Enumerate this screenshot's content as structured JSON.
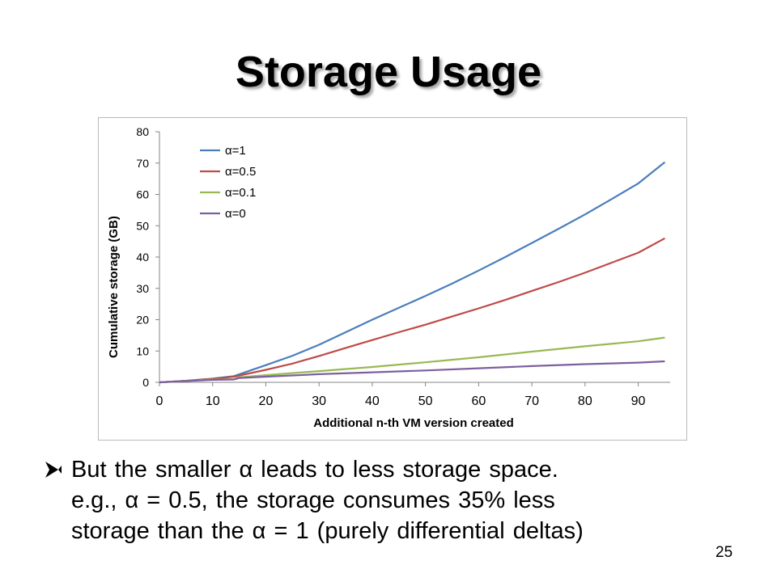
{
  "slide": {
    "title": "Storage Usage",
    "bullet_lines": [
      "But the smaller α leads to less storage space.",
      "e.g., α = 0.5, the storage consumes 35% less",
      "storage than the α = 1 (purely differential deltas)"
    ],
    "bullet_icon": "arrow-bullet-icon",
    "page_number": "25"
  },
  "chart_data": {
    "type": "line",
    "title": "",
    "xlabel": "Additional n-th VM version created",
    "ylabel": "Cumulative storage (GB)",
    "xlim": [
      0,
      96
    ],
    "ylim": [
      0,
      80
    ],
    "x_ticks": [
      0,
      10,
      20,
      30,
      40,
      50,
      60,
      70,
      80,
      90
    ],
    "y_ticks": [
      0,
      10,
      20,
      30,
      40,
      50,
      60,
      70,
      80
    ],
    "grid": false,
    "legend_position": "top-left",
    "series": [
      {
        "name": "α=1",
        "color": "#4a7ebb",
        "x": [
          0,
          5,
          10,
          14,
          20,
          25,
          30,
          35,
          40,
          45,
          50,
          55,
          60,
          65,
          70,
          75,
          80,
          85,
          90,
          95
        ],
        "values": [
          0,
          0.5,
          1.2,
          2.0,
          5.5,
          8.5,
          12.0,
          16.0,
          20.0,
          23.8,
          27.6,
          31.5,
          35.7,
          40.0,
          44.5,
          49.0,
          53.6,
          58.5,
          63.5,
          70.3
        ]
      },
      {
        "name": "α=0.5",
        "color": "#be4b48",
        "x": [
          0,
          5,
          10,
          14,
          20,
          25,
          30,
          35,
          40,
          45,
          50,
          55,
          60,
          65,
          70,
          75,
          80,
          85,
          90,
          95
        ],
        "values": [
          0,
          0.5,
          1.1,
          1.8,
          4.0,
          6.0,
          8.4,
          11.0,
          13.5,
          16.0,
          18.4,
          21.0,
          23.6,
          26.3,
          29.2,
          32.0,
          35.0,
          38.2,
          41.4,
          46.0
        ]
      },
      {
        "name": "α=0.1",
        "color": "#98b954",
        "x": [
          0,
          5,
          10,
          14,
          15,
          20,
          30,
          40,
          50,
          60,
          70,
          80,
          90,
          95
        ],
        "values": [
          0,
          0.4,
          0.9,
          1.0,
          1.6,
          2.3,
          3.6,
          4.9,
          6.4,
          8.0,
          9.8,
          11.5,
          13.1,
          14.3
        ]
      },
      {
        "name": "α=0",
        "color": "#7d5fa0",
        "x": [
          0,
          5,
          10,
          14,
          15,
          20,
          30,
          40,
          50,
          60,
          70,
          80,
          90,
          95
        ],
        "values": [
          0,
          0.4,
          0.8,
          0.9,
          1.4,
          1.8,
          2.6,
          3.2,
          3.8,
          4.5,
          5.2,
          5.8,
          6.3,
          6.7
        ]
      }
    ]
  }
}
